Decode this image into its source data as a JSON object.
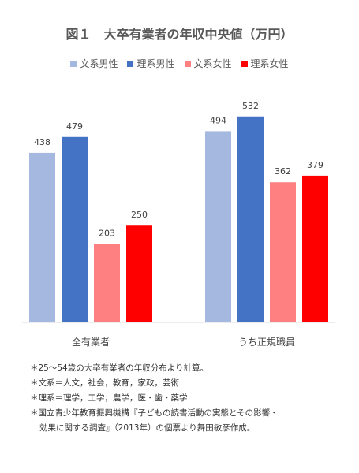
{
  "title": "図１　大卒有業者の年収中央値（万円）",
  "chart_data": {
    "type": "bar",
    "categories": [
      "全有業者",
      "うち正規職員"
    ],
    "series": [
      {
        "name": "文系男性",
        "color": "#A5B9E0",
        "values": [
          438,
          494
        ]
      },
      {
        "name": "理系男性",
        "color": "#4472C4",
        "values": [
          479,
          532
        ]
      },
      {
        "name": "文系女性",
        "color": "#FF8080",
        "values": [
          203,
          362
        ]
      },
      {
        "name": "理系女性",
        "color": "#FF0000",
        "values": [
          250,
          379
        ]
      }
    ],
    "ylim": [
      0,
      560
    ],
    "grid": false,
    "legend_position": "top"
  },
  "notes": [
    "＊25～54歳の大卒有業者の年収分布より計算。",
    "＊文系＝人文，社会，教育，家政，芸術",
    "＊理系＝理学，工学，農学，医・歯・薬学",
    "＊国立青少年教育振興機構『子どもの読書活動の実態とその影響・",
    "効果に関する調査』（2013年）の個票より舞田敏彦作成。"
  ]
}
